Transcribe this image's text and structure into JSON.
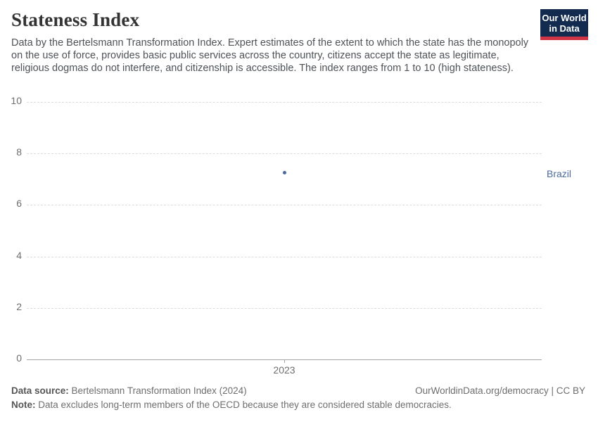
{
  "header": {
    "title": "Stateness Index",
    "subtitle": "Data by the Bertelsmann Transformation Index. Expert estimates of the extent to which the state has the monopoly on the use of force, provides basic public services across the country, citizens accept the state as legitimate, religious dogmas do not interfere, and citizenship is accessible. The index ranges from 1 to 10 (high stateness).",
    "logo": {
      "line1": "Our World",
      "line2": "in Data",
      "bg_color": "#122b4e",
      "accent_color": "#cf3545"
    }
  },
  "chart_data": {
    "type": "scatter",
    "title": "Stateness Index",
    "series": [
      {
        "name": "Brazil",
        "color": "#4c6a9c",
        "points": [
          {
            "x": 2023,
            "y": 7.25
          }
        ]
      }
    ],
    "x_ticks": [
      "2023"
    ],
    "y_ticks": [
      0,
      2,
      4,
      6,
      8,
      10
    ],
    "ylim": [
      0,
      10
    ],
    "xlabel": "",
    "ylabel": "",
    "grid": "horizontal-dashed",
    "legend_position": "right-entity-label",
    "entity_label": "Brazil"
  },
  "footer": {
    "source_label": "Data source:",
    "source_text": " Bertelsmann Transformation Index (2024)",
    "attribution": "OurWorldinData.org/democracy | CC BY",
    "note_label": "Note:",
    "note_text": " Data excludes long-term members of the OECD because they are considered stable democracies."
  }
}
